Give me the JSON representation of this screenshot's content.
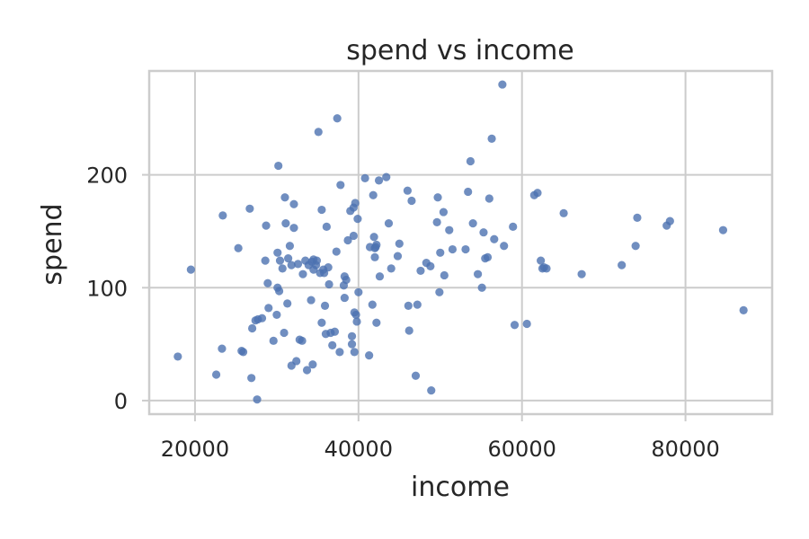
{
  "chart_data": {
    "type": "scatter",
    "title": "spend vs income",
    "xlabel": "income",
    "ylabel": "spend",
    "xlim": [
      14400,
      90600
    ],
    "ylim": [
      -12,
      292
    ],
    "xticks": [
      20000,
      40000,
      60000,
      80000
    ],
    "xtick_labels": [
      "20000",
      "40000",
      "60000",
      "80000"
    ],
    "yticks": [
      0,
      100,
      200
    ],
    "ytick_labels": [
      "0",
      "100",
      "200"
    ],
    "grid": true,
    "marker_color": "#4c72b0",
    "series": [
      {
        "points": [
          [
            17900,
            39
          ],
          [
            19500,
            116
          ],
          [
            22600,
            23
          ],
          [
            23300,
            46
          ],
          [
            23400,
            164
          ],
          [
            25300,
            135
          ],
          [
            25700,
            44
          ],
          [
            25900,
            43
          ],
          [
            26700,
            170
          ],
          [
            26900,
            20
          ],
          [
            27000,
            64
          ],
          [
            27400,
            71
          ],
          [
            27600,
            1
          ],
          [
            27700,
            72
          ],
          [
            28200,
            73
          ],
          [
            28600,
            124
          ],
          [
            28700,
            155
          ],
          [
            28900,
            104
          ],
          [
            29000,
            82
          ],
          [
            29600,
            53
          ],
          [
            30000,
            76
          ],
          [
            30100,
            100
          ],
          [
            30100,
            131
          ],
          [
            30200,
            208
          ],
          [
            30300,
            97
          ],
          [
            30400,
            124
          ],
          [
            30700,
            117
          ],
          [
            30900,
            60
          ],
          [
            31000,
            180
          ],
          [
            31100,
            157
          ],
          [
            31300,
            86
          ],
          [
            31400,
            126
          ],
          [
            31600,
            137
          ],
          [
            31800,
            31
          ],
          [
            31800,
            120
          ],
          [
            32100,
            153
          ],
          [
            32100,
            174
          ],
          [
            32400,
            35
          ],
          [
            32600,
            121
          ],
          [
            32800,
            54
          ],
          [
            33100,
            53
          ],
          [
            33200,
            112
          ],
          [
            33500,
            124
          ],
          [
            33700,
            27
          ],
          [
            33900,
            120
          ],
          [
            34200,
            89
          ],
          [
            34300,
            123
          ],
          [
            34400,
            32
          ],
          [
            34500,
            125
          ],
          [
            34500,
            116
          ],
          [
            34800,
            120
          ],
          [
            34900,
            124
          ],
          [
            35100,
            238
          ],
          [
            35300,
            113
          ],
          [
            35500,
            69
          ],
          [
            35500,
            169
          ],
          [
            35700,
            116
          ],
          [
            35800,
            113
          ],
          [
            35900,
            84
          ],
          [
            36000,
            59
          ],
          [
            36100,
            154
          ],
          [
            36300,
            118
          ],
          [
            36400,
            103
          ],
          [
            36600,
            60
          ],
          [
            36800,
            49
          ],
          [
            37100,
            61
          ],
          [
            37300,
            132
          ],
          [
            37400,
            250
          ],
          [
            37700,
            43
          ],
          [
            37800,
            191
          ],
          [
            38200,
            102
          ],
          [
            38300,
            91
          ],
          [
            38300,
            110
          ],
          [
            38500,
            107
          ],
          [
            38700,
            142
          ],
          [
            39000,
            168
          ],
          [
            39200,
            57
          ],
          [
            39200,
            50
          ],
          [
            39400,
            171
          ],
          [
            39400,
            146
          ],
          [
            39500,
            78
          ],
          [
            39500,
            43
          ],
          [
            39600,
            175
          ],
          [
            39700,
            76
          ],
          [
            39800,
            70
          ],
          [
            39900,
            161
          ],
          [
            40000,
            96
          ],
          [
            40800,
            197
          ],
          [
            41300,
            40
          ],
          [
            41400,
            136
          ],
          [
            41700,
            85
          ],
          [
            41800,
            182
          ],
          [
            41900,
            145
          ],
          [
            42000,
            135
          ],
          [
            42000,
            127
          ],
          [
            42100,
            136
          ],
          [
            42200,
            138
          ],
          [
            42200,
            69
          ],
          [
            42500,
            195
          ],
          [
            42600,
            110
          ],
          [
            43400,
            198
          ],
          [
            43700,
            157
          ],
          [
            44000,
            117
          ],
          [
            44800,
            128
          ],
          [
            45000,
            139
          ],
          [
            46000,
            186
          ],
          [
            46100,
            84
          ],
          [
            46200,
            62
          ],
          [
            46500,
            177
          ],
          [
            47000,
            22
          ],
          [
            47200,
            85
          ],
          [
            47600,
            115
          ],
          [
            48300,
            122
          ],
          [
            48800,
            119
          ],
          [
            48900,
            9
          ],
          [
            49600,
            158
          ],
          [
            49700,
            180
          ],
          [
            49900,
            96
          ],
          [
            50000,
            131
          ],
          [
            50400,
            167
          ],
          [
            50500,
            111
          ],
          [
            51100,
            151
          ],
          [
            51500,
            134
          ],
          [
            53100,
            134
          ],
          [
            53400,
            185
          ],
          [
            53700,
            212
          ],
          [
            54000,
            157
          ],
          [
            54600,
            112
          ],
          [
            55100,
            100
          ],
          [
            55300,
            149
          ],
          [
            55500,
            126
          ],
          [
            55800,
            127
          ],
          [
            56000,
            179
          ],
          [
            56300,
            232
          ],
          [
            56600,
            143
          ],
          [
            57600,
            280
          ],
          [
            57800,
            137
          ],
          [
            58900,
            154
          ],
          [
            59100,
            67
          ],
          [
            60600,
            68
          ],
          [
            61500,
            182
          ],
          [
            61900,
            184
          ],
          [
            62300,
            124
          ],
          [
            62500,
            117
          ],
          [
            62700,
            118
          ],
          [
            63000,
            117
          ],
          [
            65100,
            166
          ],
          [
            67300,
            112
          ],
          [
            72200,
            120
          ],
          [
            73900,
            137
          ],
          [
            74100,
            162
          ],
          [
            77700,
            155
          ],
          [
            78100,
            159
          ],
          [
            84600,
            151
          ],
          [
            87100,
            80
          ]
        ]
      }
    ]
  }
}
